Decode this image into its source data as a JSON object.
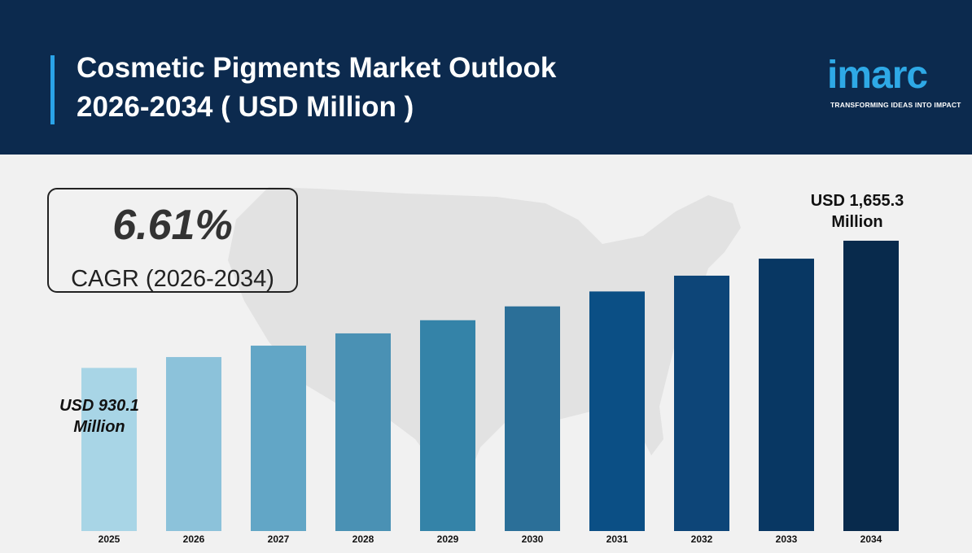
{
  "header": {
    "title_line1": "Cosmetic Pigments Market Outlook",
    "title_line2": "2026-2034 ( USD Million )"
  },
  "logo": {
    "wordmark": "imarc",
    "tagline": "TRANSFORMING IDEAS INTO IMPACT"
  },
  "cagr": {
    "value": "6.61%",
    "label": "CAGR (2026-2034)"
  },
  "callouts": {
    "first_line1": "USD 930.1",
    "first_line2": "Million",
    "last_line1": "USD 1,655.3",
    "last_line2": "Million"
  },
  "colors": {
    "header_bg": "#0c2a4e",
    "accent": "#2aa3e8",
    "background": "#f1f1f1",
    "map": "#e2e2e2",
    "bars": [
      "#a8d5e6",
      "#8cc2da",
      "#62a6c6",
      "#4a91b4",
      "#3483a8",
      "#2b6f98",
      "#0b4f85",
      "#0d4578",
      "#083763",
      "#082a4c"
    ]
  },
  "chart_data": {
    "type": "bar",
    "title": "Cosmetic Pigments Market Outlook 2026-2034 ( USD Million )",
    "xlabel": "",
    "ylabel": "",
    "categories": [
      "2025",
      "2026",
      "2027",
      "2028",
      "2029",
      "2030",
      "2031",
      "2032",
      "2033",
      "2034"
    ],
    "values": [
      930.1,
      992,
      1057,
      1127,
      1202,
      1281,
      1366,
      1456,
      1553,
      1655.3
    ],
    "ylim": [
      0,
      1700
    ],
    "grid": false,
    "legend": "none"
  }
}
